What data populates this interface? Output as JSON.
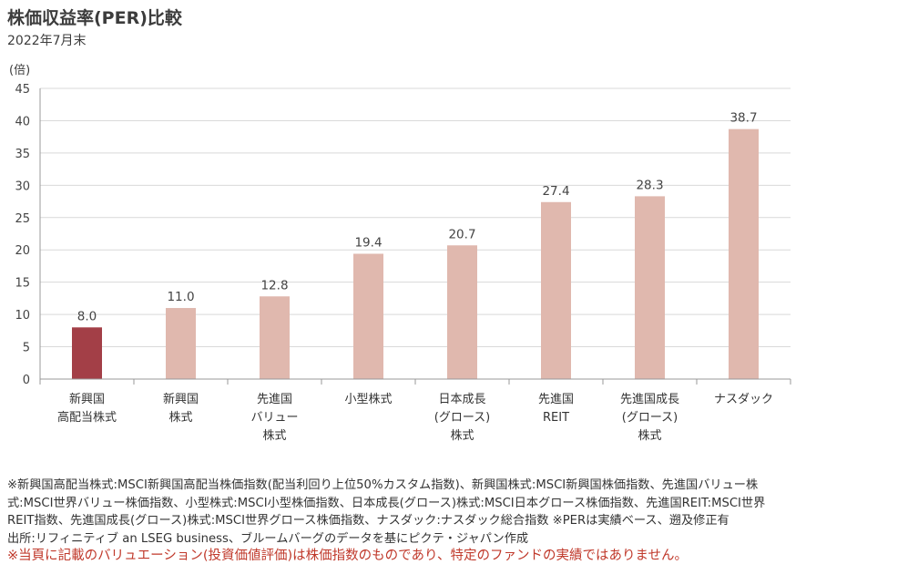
{
  "title": "株価収益率(PER)比較",
  "subtitle": "2022年7月末",
  "unit_label": "(倍)",
  "chart_data": {
    "type": "bar",
    "title": "株価収益率(PER)比較",
    "subtitle": "2022年7月末",
    "ylabel": "(倍)",
    "ylim": [
      0,
      45
    ],
    "yticks": [
      0,
      5,
      10,
      15,
      20,
      25,
      30,
      35,
      40,
      45
    ],
    "grid": true,
    "categories": [
      [
        "新興国",
        "高配当株式"
      ],
      [
        "新興国",
        "株式"
      ],
      [
        "先進国",
        "バリュー",
        "株式"
      ],
      [
        "小型株式"
      ],
      [
        "日本成長",
        "(グロース)",
        "株式"
      ],
      [
        "先進国",
        "REIT"
      ],
      [
        "先進国成長",
        "(グロース)",
        "株式"
      ],
      [
        "ナスダック"
      ]
    ],
    "values": [
      8.0,
      11.0,
      12.8,
      19.4,
      20.7,
      27.4,
      28.3,
      38.7
    ],
    "value_labels": [
      "8.0",
      "11.0",
      "12.8",
      "19.4",
      "20.7",
      "27.4",
      "28.3",
      "38.7"
    ],
    "colors": [
      "#a33f47",
      "#e0b8ae",
      "#e0b8ae",
      "#e0b8ae",
      "#e0b8ae",
      "#e0b8ae",
      "#e0b8ae",
      "#e0b8ae"
    ]
  },
  "notes": [
    "※新興国高配当株式:MSCI新興国高配当株価指数(配当利回り上位50%カスタム指数)、新興国株式:MSCI新興国株価指数、先進国バリュー株",
    "式:MSCI世界バリュー株価指数、小型株式:MSCI小型株価指数、日本成長(グロース)株式:MSCI日本グロース株価指数、先進国REIT:MSCI世界",
    "REIT指数、先進国成長(グロース)株式:MSCI世界グロース株価指数、ナスダック:ナスダック総合指数 ※PERは実績ベース、遡及修正有",
    "出所:リフィニティブ an LSEG business、ブルームバーグのデータを基にピクテ・ジャパン作成"
  ],
  "warning": "※当頁に記載のバリュエーション(投資価値評価)は株価指数のものであり、特定のファンドの実績ではありません。"
}
